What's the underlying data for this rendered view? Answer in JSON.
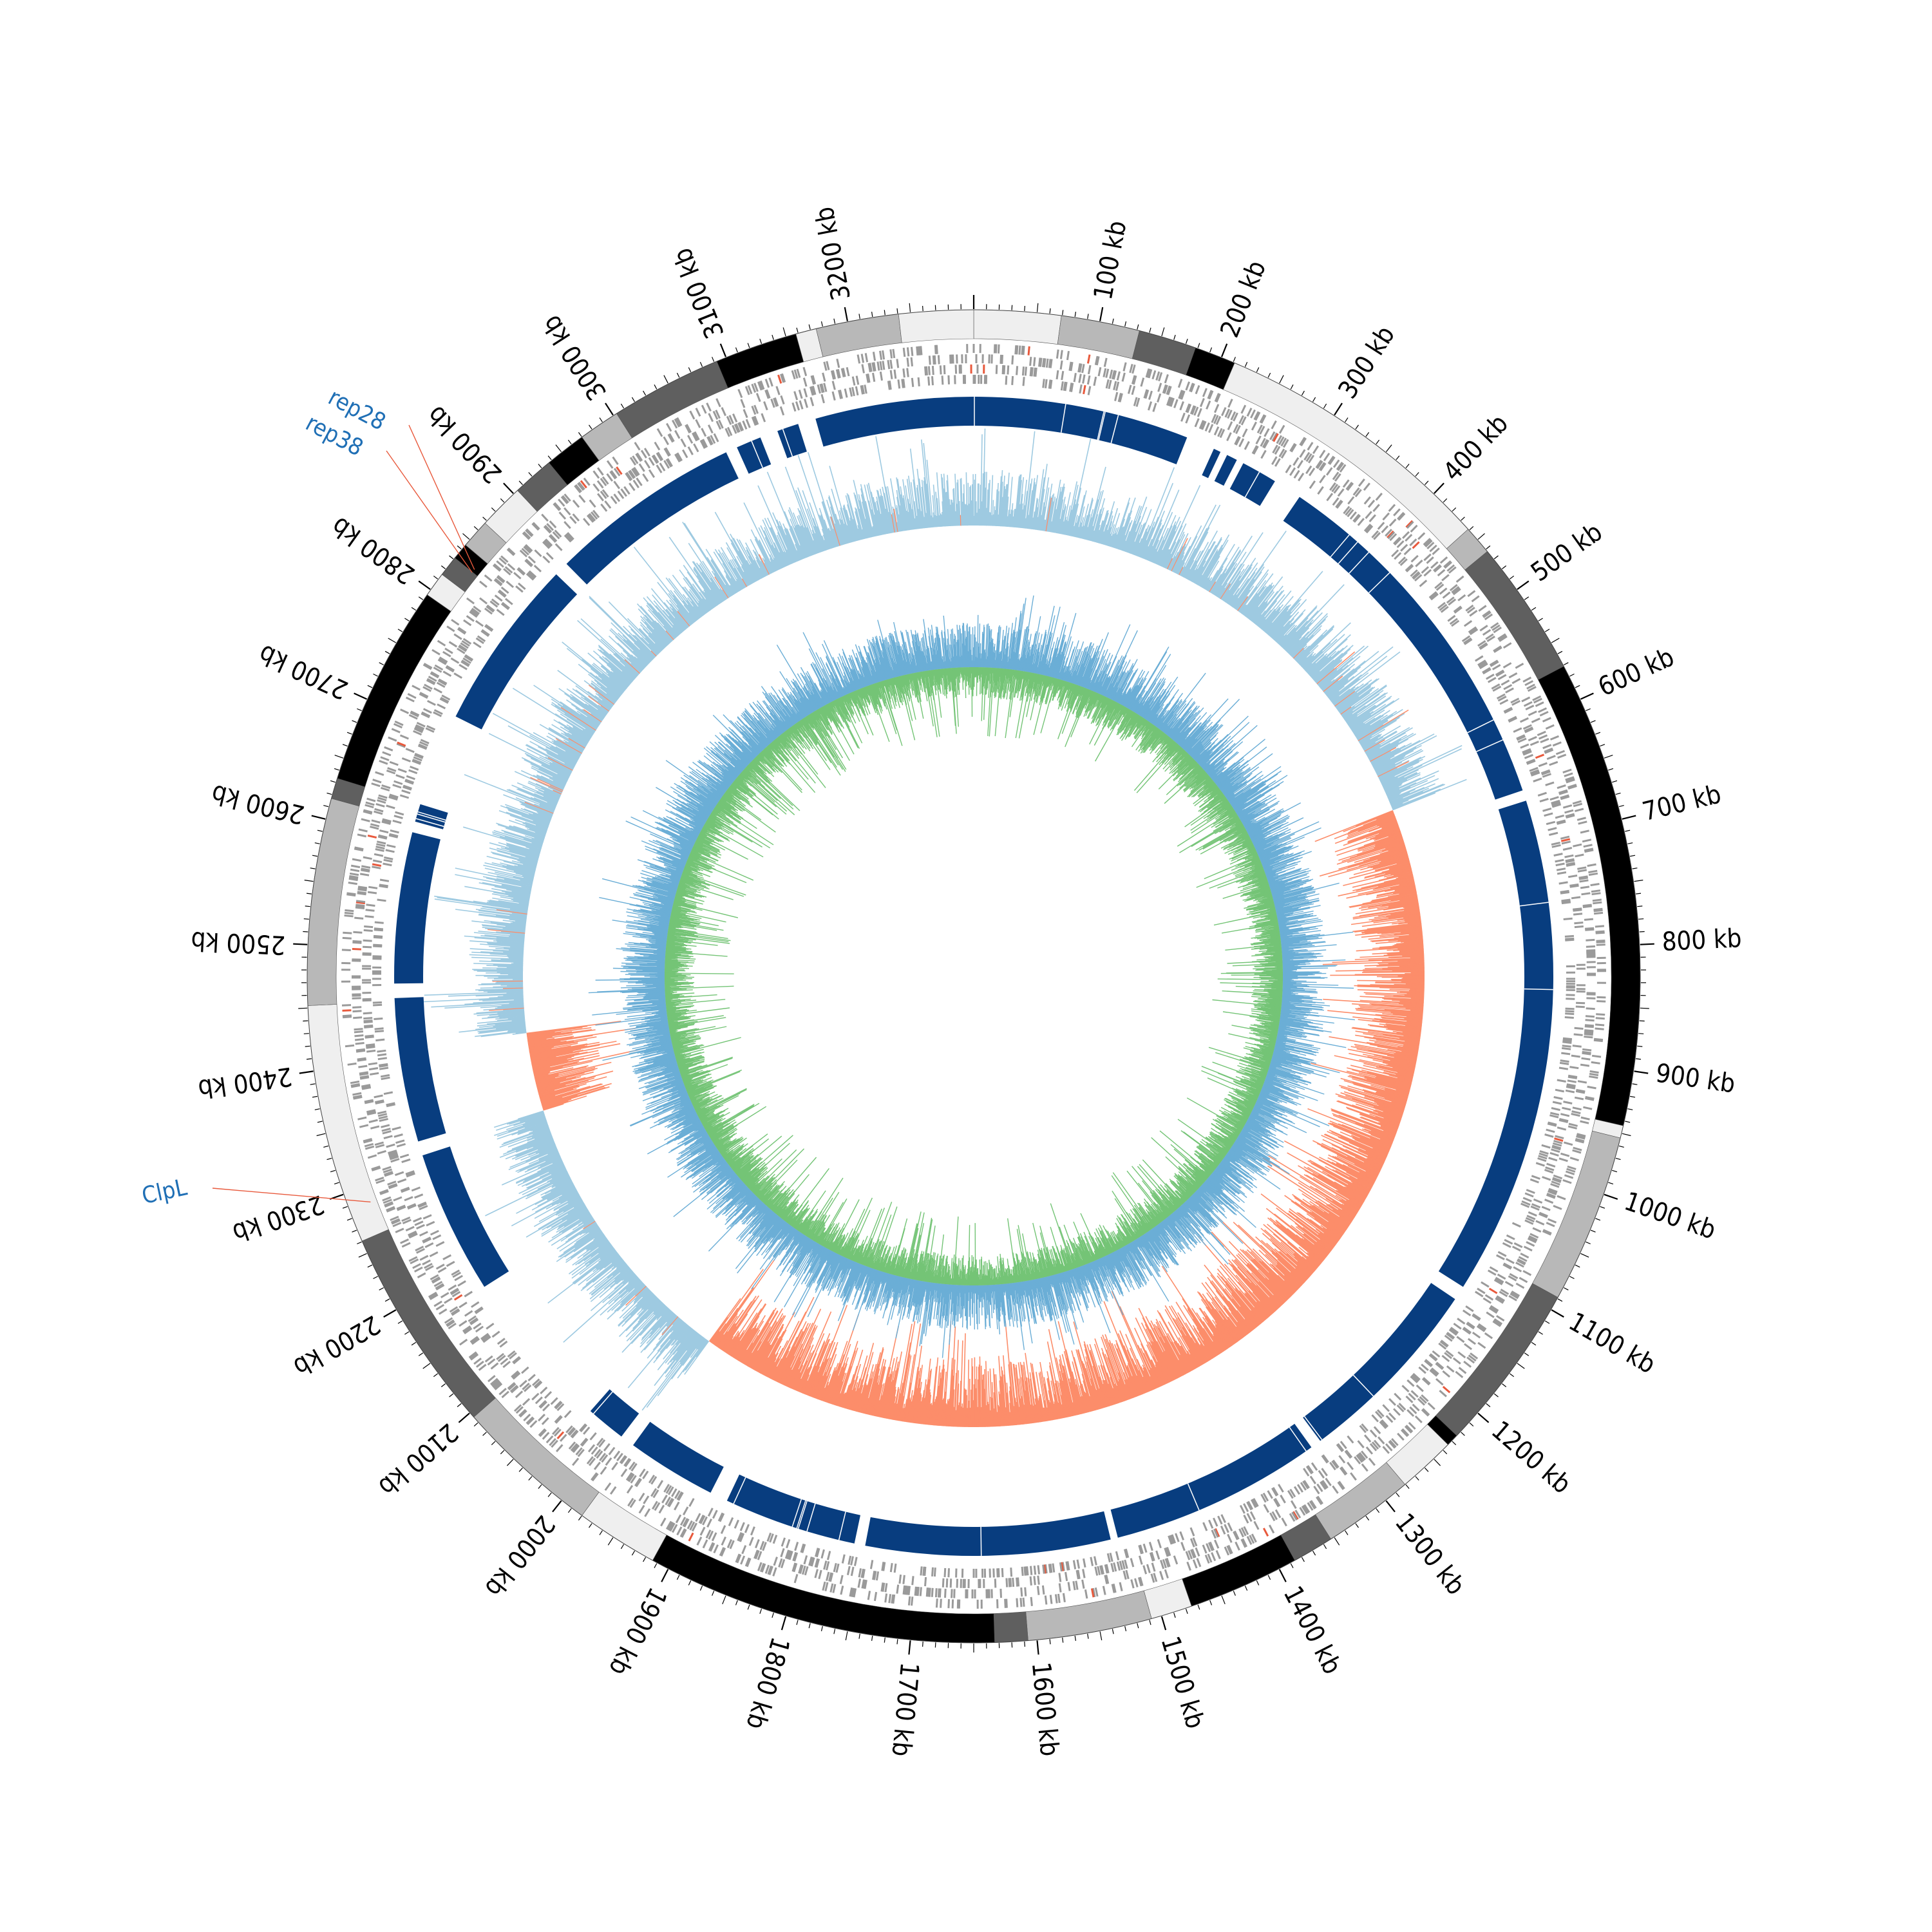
{
  "figure": {
    "genome_length_kb": 3300,
    "tick_unit": "kb",
    "major_tick_labels": [
      "100 kb",
      "200 kb",
      "300 kb",
      "400 kb",
      "500 kb",
      "600 kb",
      "700 kb",
      "800 kb",
      "900 kb",
      "1000 kb",
      "1100 kb",
      "1200 kb",
      "1300 kb",
      "1400 kb",
      "1500 kb",
      "1600 kb",
      "1700 kb",
      "1800 kb",
      "1900 kb",
      "2000 kb",
      "2100 kb",
      "2200 kb",
      "2300 kb",
      "2400 kb",
      "2500 kb",
      "2600 kb",
      "2700 kb",
      "2800 kb",
      "2900 kb",
      "3000 kb",
      "3100 kb",
      "3200 kb"
    ],
    "annotations": [
      {
        "label": "rep28",
        "position_kb": 2834,
        "color": "#1f6fb5",
        "line_color": "#e8593c"
      },
      {
        "label": "rep38",
        "position_kb": 2831,
        "color": "#1f6fb5",
        "line_color": "#e8593c"
      },
      {
        "label": "ClpL",
        "position_kb": 2287,
        "color": "#1f6fb5",
        "line_color": "#e8593c"
      }
    ],
    "colors": {
      "block_shades": [
        "#000000",
        "#5f5f5f",
        "#b8b8b8",
        "#efefef"
      ],
      "gene_features": "#9a9a9a",
      "gene_highlight": "#e8593c",
      "contig_track": "#083d7f",
      "contig_minor": "#2b7bba",
      "gc_content_high": "#9ecae1",
      "gc_content_low": "#fc8d6a",
      "gc_skew_positive": "#6baed6",
      "gc_skew_negative": "#74c476"
    }
  }
}
